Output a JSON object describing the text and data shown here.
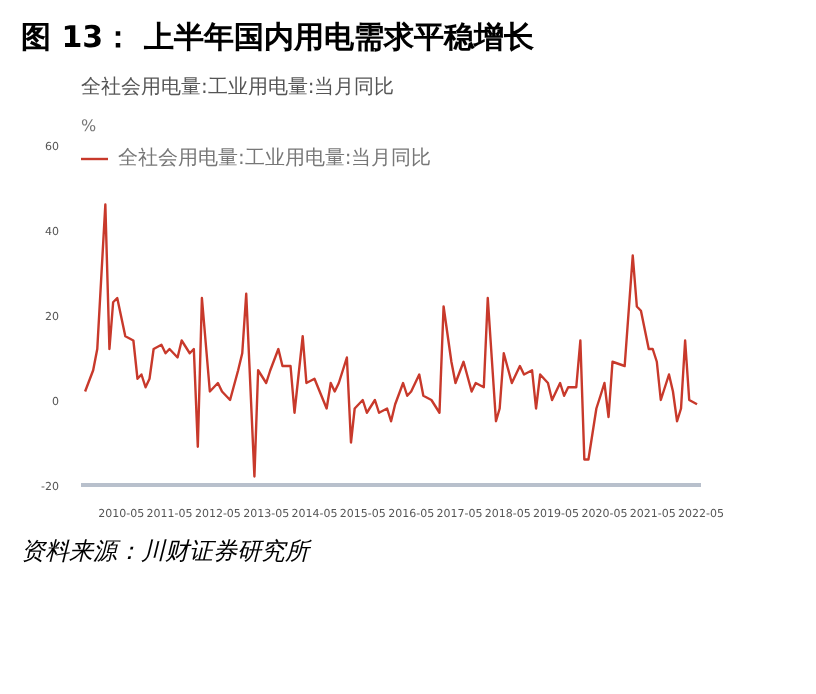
{
  "chart_data": {
    "type": "line",
    "title": "图 13： 上半年国内用电需求平稳增长",
    "subtitle": "全社会用电量:工业用电量:当月同比",
    "ylabel": "%",
    "annotations": [
      "资料来源：川财证券研究所"
    ],
    "x": [
      "2009-08",
      "2009-10",
      "2009-11",
      "2010-01",
      "2010-02",
      "2010-03",
      "2010-04",
      "2010-06",
      "2010-08",
      "2010-09",
      "2010-10",
      "2010-11",
      "2010-12",
      "2011-01",
      "2011-03",
      "2011-04",
      "2011-05",
      "2011-07",
      "2011-08",
      "2011-10",
      "2011-11",
      "2011-12",
      "2012-01",
      "2012-03",
      "2012-05",
      "2012-06",
      "2012-08",
      "2012-10",
      "2012-11",
      "2012-12",
      "2013-02",
      "2013-03",
      "2013-05",
      "2013-06",
      "2013-08",
      "2013-09",
      "2013-11",
      "2013-12",
      "2014-02",
      "2014-03",
      "2014-05",
      "2014-08",
      "2014-09",
      "2014-10",
      "2014-11",
      "2015-01",
      "2015-02",
      "2015-03",
      "2015-05",
      "2015-06",
      "2015-08",
      "2015-09",
      "2015-11",
      "2015-12",
      "2016-01",
      "2016-03",
      "2016-04",
      "2016-05",
      "2016-07",
      "2016-08",
      "2016-10",
      "2016-12",
      "2017-01",
      "2017-03",
      "2017-04",
      "2017-06",
      "2017-08",
      "2017-09",
      "2017-11",
      "2017-12",
      "2018-02",
      "2018-03",
      "2018-04",
      "2018-06",
      "2018-08",
      "2018-09",
      "2018-11",
      "2018-12",
      "2019-01",
      "2019-03",
      "2019-04",
      "2019-06",
      "2019-07",
      "2019-08",
      "2019-10",
      "2019-11",
      "2019-12",
      "2020-01",
      "2020-03",
      "2020-04",
      "2020-05",
      "2020-06",
      "2020-07",
      "2020-10",
      "2020-12",
      "2021-01",
      "2021-02",
      "2021-04",
      "2021-05",
      "2021-06",
      "2021-07",
      "2021-09",
      "2021-10",
      "2021-11",
      "2021-12",
      "2022-01",
      "2022-02",
      "2022-04"
    ],
    "series": [
      {
        "name": "全社会用电量:工业用电量:当月同比",
        "color": "#c8392b",
        "values": [
          2,
          7,
          12,
          46,
          12,
          23,
          24,
          15,
          14,
          5,
          6,
          3,
          5,
          12,
          13,
          11,
          12,
          10,
          14,
          11,
          12,
          -11,
          24,
          2,
          4,
          2,
          0,
          7,
          11,
          25,
          -18,
          7,
          4,
          7,
          12,
          8,
          8,
          -3,
          15,
          4,
          5,
          -2,
          4,
          2,
          4,
          10,
          -10,
          -2,
          0,
          -3,
          0,
          -3,
          -2,
          -5,
          -1,
          4,
          1,
          2,
          6,
          1,
          0,
          -3,
          22,
          9,
          4,
          9,
          2,
          4,
          3,
          24,
          -5,
          -2,
          11,
          4,
          8,
          6,
          7,
          -2,
          6,
          4,
          0,
          4,
          1,
          3,
          3,
          14,
          -14,
          -14,
          -2,
          1,
          4,
          -4,
          9,
          8,
          34,
          22,
          21,
          12,
          12,
          9,
          0,
          6,
          2,
          -5,
          -2,
          14,
          0,
          -1
        ]
      }
    ],
    "xlim": [
      "2009-07",
      "2022-05"
    ],
    "xticks": [
      "2010-05",
      "2011-05",
      "2012-05",
      "2013-05",
      "2014-05",
      "2015-05",
      "2016-05",
      "2017-05",
      "2018-05",
      "2019-05",
      "2020-05",
      "2021-05",
      "2022-05"
    ],
    "ylim": [
      -20,
      60
    ],
    "yticks": [
      -20,
      0,
      20,
      40,
      60
    ],
    "grid": false,
    "legend": "top left",
    "line_style": "solid",
    "marker": "none"
  }
}
